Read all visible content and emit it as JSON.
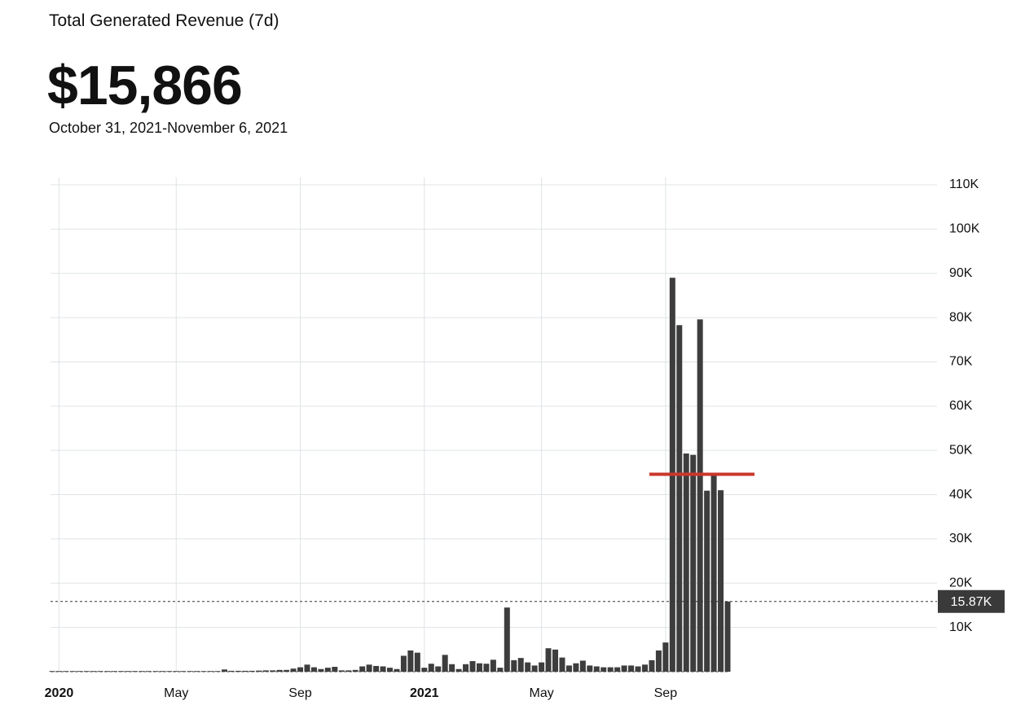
{
  "header": {
    "title": "Total Generated Revenue (7d)",
    "value": "$15,866",
    "date_range": "October 31, 2021-November 6, 2021"
  },
  "chart_data": {
    "type": "bar",
    "color": "#3d3d3d",
    "categories": [
      null,
      "2020",
      null,
      null,
      null,
      null,
      null,
      null,
      null,
      null,
      null,
      null,
      null,
      null,
      null,
      null,
      null,
      null,
      "May",
      null,
      null,
      null,
      null,
      null,
      null,
      null,
      null,
      null,
      null,
      null,
      null,
      null,
      null,
      null,
      null,
      null,
      "Sep",
      null,
      null,
      null,
      null,
      null,
      null,
      null,
      null,
      null,
      null,
      null,
      null,
      null,
      null,
      null,
      null,
      null,
      "2021",
      null,
      null,
      null,
      null,
      null,
      null,
      null,
      null,
      null,
      null,
      null,
      null,
      null,
      null,
      null,
      null,
      "May",
      null,
      null,
      null,
      null,
      null,
      null,
      null,
      null,
      null,
      null,
      null,
      null,
      null,
      null,
      null,
      null,
      null,
      "Sep",
      null,
      null,
      null,
      null,
      null,
      null,
      null,
      null,
      null
    ],
    "values": [
      150,
      150,
      150,
      150,
      150,
      150,
      150,
      150,
      150,
      150,
      150,
      150,
      150,
      150,
      150,
      150,
      150,
      150,
      150,
      150,
      150,
      150,
      150,
      150,
      150,
      500,
      200,
      200,
      200,
      200,
      250,
      300,
      300,
      400,
      400,
      700,
      1000,
      1600,
      1000,
      600,
      900,
      1100,
      300,
      300,
      400,
      1200,
      1600,
      1300,
      1200,
      900,
      600,
      3600,
      4800,
      4300,
      900,
      1800,
      1200,
      3800,
      1700,
      600,
      1700,
      2400,
      1900,
      1800,
      2700,
      900,
      14500,
      2600,
      3100,
      2100,
      1400,
      2100,
      5300,
      5000,
      3200,
      1400,
      1900,
      2500,
      1400,
      1200,
      1000,
      1000,
      1000,
      1400,
      1400,
      1200,
      1600,
      2600,
      4800,
      6600,
      89000,
      78300,
      49300,
      49000,
      79600,
      40900,
      44700,
      41000,
      15866
    ],
    "value_labels": [
      null,
      null,
      null,
      null,
      null,
      null,
      null,
      null,
      null,
      null,
      null,
      null,
      null,
      null,
      null,
      null,
      null,
      null,
      null,
      null,
      null,
      null,
      null,
      null,
      null,
      null,
      null,
      null,
      null,
      null,
      null,
      null,
      null,
      null,
      null,
      null,
      null,
      null,
      null,
      null,
      null,
      null,
      null,
      null,
      null,
      null,
      null,
      null,
      null,
      null,
      null,
      null,
      null,
      null,
      null,
      null,
      null,
      null,
      null,
      null,
      null,
      null,
      null,
      null,
      null,
      null,
      null,
      null,
      null,
      null,
      null,
      null,
      null,
      null,
      null,
      null,
      null,
      null,
      null,
      null,
      null,
      null,
      null,
      null,
      null,
      null,
      null,
      null,
      null,
      null,
      null,
      null,
      null,
      null,
      null,
      null,
      null,
      null,
      "15.87K"
    ],
    "ylim": [
      0,
      110000
    ],
    "yticks": [
      {
        "value": 10000,
        "label": "10K"
      },
      {
        "value": 20000,
        "label": "20K"
      },
      {
        "value": 30000,
        "label": "30K"
      },
      {
        "value": 40000,
        "label": "40K"
      },
      {
        "value": 50000,
        "label": "50K"
      },
      {
        "value": 60000,
        "label": "60K"
      },
      {
        "value": 70000,
        "label": "70K"
      },
      {
        "value": 80000,
        "label": "80K"
      },
      {
        "value": 90000,
        "label": "90K"
      },
      {
        "value": 100000,
        "label": "100K"
      },
      {
        "value": 110000,
        "label": "110K"
      }
    ],
    "grid": true,
    "reference_line": {
      "value": 44600,
      "color": "#c9372c"
    }
  }
}
